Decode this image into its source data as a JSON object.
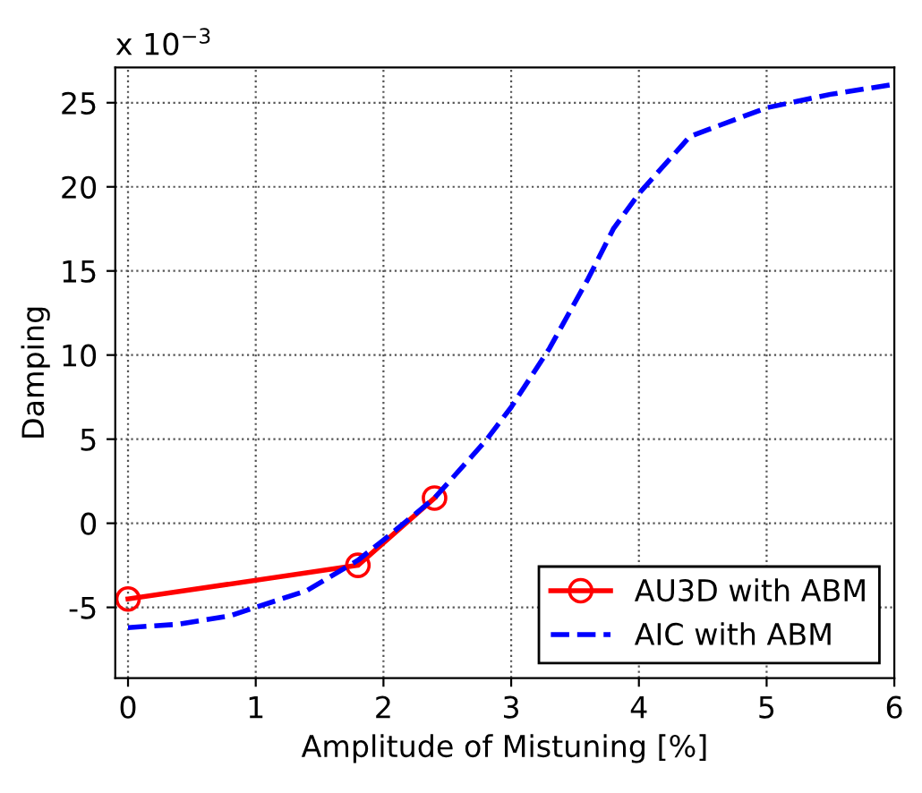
{
  "chart_data": {
    "type": "line",
    "xlabel": "Amplitude of Mistuning [%]",
    "ylabel": "Damping",
    "annotations": [
      "x 10$^{−3}$"
    ],
    "series": [
      {
        "name": "AU3D with ABM",
        "color": "#ff0000",
        "marker": "circle",
        "line_style": "solid",
        "x": [
          0,
          1.8,
          2.4
        ],
        "values": [
          -4.5,
          -2.5,
          1.5
        ]
      },
      {
        "name": "AIC with ABM",
        "color": "#0000ff",
        "marker": "none",
        "line_style": "dashed",
        "x": [
          0,
          0.4,
          0.8,
          1,
          1.4,
          1.8,
          2,
          2.4,
          2.8,
          3,
          3.3,
          3.6,
          3.8,
          4,
          4.4,
          5,
          5.5,
          6
        ],
        "values": [
          -6.2,
          -6.0,
          -5.5,
          -5.0,
          -4.0,
          -2.2,
          -1.0,
          1.5,
          4.9,
          6.9,
          10.4,
          14.5,
          17.5,
          19.6,
          23.0,
          24.7,
          25.5,
          26.1
        ]
      }
    ],
    "xlim": [
      -0.1,
      6
    ],
    "ylim": [
      -9.2,
      27.1
    ],
    "xticks": [
      0,
      1,
      2,
      3,
      4,
      5,
      6
    ],
    "yticks": [
      -5,
      0,
      5,
      10,
      15,
      20,
      25
    ],
    "grid": true,
    "legend": "bottom right"
  }
}
